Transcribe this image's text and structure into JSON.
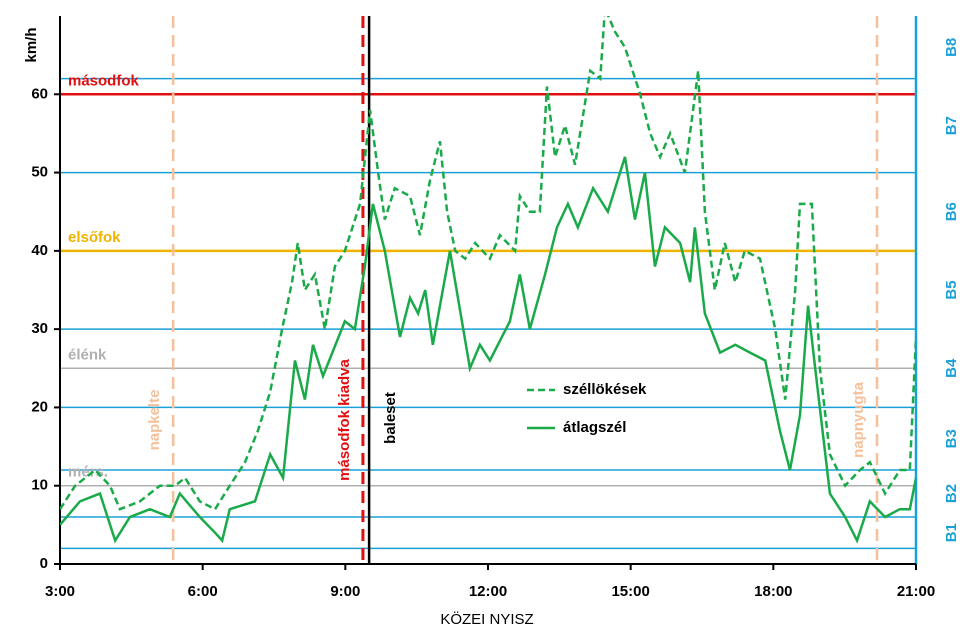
{
  "chart_data": {
    "type": "line",
    "xlabel": "KÖZEI NYISZ",
    "ylabel": "km/h",
    "xlim": [
      3,
      21
    ],
    "ylim": [
      0,
      70
    ],
    "xticks": [
      {
        "value": 3,
        "label": "3:00"
      },
      {
        "value": 6,
        "label": "6:00"
      },
      {
        "value": 9,
        "label": "9:00"
      },
      {
        "value": 12,
        "label": "12:00"
      },
      {
        "value": 15,
        "label": "15:00"
      },
      {
        "value": 18,
        "label": "18:00"
      },
      {
        "value": 21,
        "label": "21:00"
      }
    ],
    "yticks": [
      0,
      10,
      20,
      30,
      40,
      50,
      60
    ],
    "series": [
      {
        "name": "széllökések",
        "color": "#1aaa4a",
        "style": "dashed",
        "x": [
          3.0,
          3.32,
          3.74,
          4.05,
          4.26,
          4.68,
          5.1,
          5.42,
          5.63,
          5.94,
          6.26,
          6.57,
          6.89,
          7.16,
          7.42,
          7.67,
          7.88,
          8.0,
          8.15,
          8.36,
          8.57,
          8.78,
          8.99,
          9.31,
          9.52,
          9.69,
          9.83,
          10.04,
          10.36,
          10.57,
          10.78,
          10.99,
          11.14,
          11.31,
          11.52,
          11.73,
          12.04,
          12.25,
          12.57,
          12.67,
          12.88,
          13.09,
          13.24,
          13.41,
          13.62,
          13.83,
          14.15,
          14.36,
          14.46,
          14.67,
          14.88,
          15.2,
          15.41,
          15.62,
          15.83,
          16.14,
          16.42,
          16.56,
          16.77,
          16.98,
          17.2,
          17.4,
          17.72,
          18.04,
          18.25,
          18.46,
          18.56,
          18.81,
          18.98,
          19.19,
          19.51,
          19.82,
          20.03,
          20.35,
          20.66,
          20.87,
          21.0
        ],
        "values": [
          7,
          10,
          12,
          10,
          7,
          8,
          10,
          10,
          11,
          8,
          7,
          10,
          13,
          17,
          22,
          30,
          36,
          41,
          35,
          37,
          30,
          38,
          40,
          46,
          58,
          50,
          44,
          48,
          47,
          42,
          49,
          54,
          45,
          40,
          39,
          41,
          39,
          42,
          40,
          47,
          45,
          45,
          61,
          52,
          56,
          51,
          63,
          62,
          71,
          68,
          66,
          60,
          55,
          52,
          55,
          50,
          63,
          45,
          35,
          41,
          36,
          40,
          39,
          30,
          21,
          35,
          46,
          46,
          25,
          14,
          10,
          12,
          13,
          9,
          12,
          12,
          29
        ]
      },
      {
        "name": "átlagszél",
        "color": "#1aaa4a",
        "style": "solid",
        "x": [
          3.0,
          3.42,
          3.84,
          4.16,
          4.47,
          4.89,
          5.31,
          5.52,
          5.94,
          6.26,
          6.41,
          6.57,
          7.1,
          7.42,
          7.69,
          7.94,
          8.15,
          8.32,
          8.53,
          8.99,
          9.2,
          9.41,
          9.58,
          9.83,
          10.15,
          10.36,
          10.53,
          10.68,
          10.84,
          10.99,
          11.2,
          11.62,
          11.83,
          12.04,
          12.46,
          12.67,
          12.88,
          13.2,
          13.45,
          13.68,
          13.89,
          14.21,
          14.52,
          14.88,
          15.09,
          15.3,
          15.51,
          15.72,
          16.04,
          16.25,
          16.35,
          16.56,
          16.88,
          17.2,
          17.51,
          17.83,
          18.14,
          18.35,
          18.56,
          18.73,
          18.88,
          19.19,
          19.51,
          19.76,
          20.03,
          20.35,
          20.66,
          20.87,
          21.0
        ],
        "values": [
          5,
          8,
          9,
          3,
          6,
          7,
          6,
          9,
          6,
          4,
          3,
          7,
          8,
          14,
          11,
          26,
          21,
          28,
          24,
          31,
          30,
          38,
          46,
          40,
          29,
          34,
          32,
          35,
          28,
          33,
          40,
          25,
          28,
          26,
          31,
          37,
          30,
          37,
          43,
          46,
          43,
          48,
          45,
          52,
          44,
          50,
          38,
          43,
          41,
          36,
          43,
          32,
          27,
          28,
          27,
          26,
          17,
          12,
          19,
          33,
          25,
          9,
          6,
          3,
          8,
          6,
          7,
          7,
          11
        ]
      }
    ],
    "ref_lines": [
      {
        "label": "másodfok",
        "value": 60,
        "color": "#e01010"
      },
      {
        "label": "elsőfok",
        "value": 40,
        "color": "#f0b400"
      },
      {
        "label": "élénk",
        "value": 25,
        "color": "#b0b0b0"
      },
      {
        "label": "mérs.",
        "value": 10,
        "color": "#b0b0b0"
      }
    ],
    "vlines": [
      {
        "label": "napkelte",
        "x": 5.38,
        "color": "#f5c09a",
        "style": "dashed"
      },
      {
        "label": "másodfok kiadva",
        "x": 9.37,
        "color": "#e01010",
        "style": "dashed"
      },
      {
        "label": "baleset",
        "x": 9.5,
        "color": "#000000",
        "style": "solid"
      },
      {
        "label": "napnyugta",
        "x": 20.18,
        "color": "#f5c09a",
        "style": "dashed"
      }
    ],
    "beaufort": {
      "color": "#1aa0d8",
      "lines": [
        2,
        6,
        12,
        20,
        30,
        40,
        50,
        62
      ],
      "labels": [
        "B1",
        "B2",
        "B3",
        "B4",
        "B5",
        "B6",
        "B7",
        "B8"
      ]
    }
  }
}
